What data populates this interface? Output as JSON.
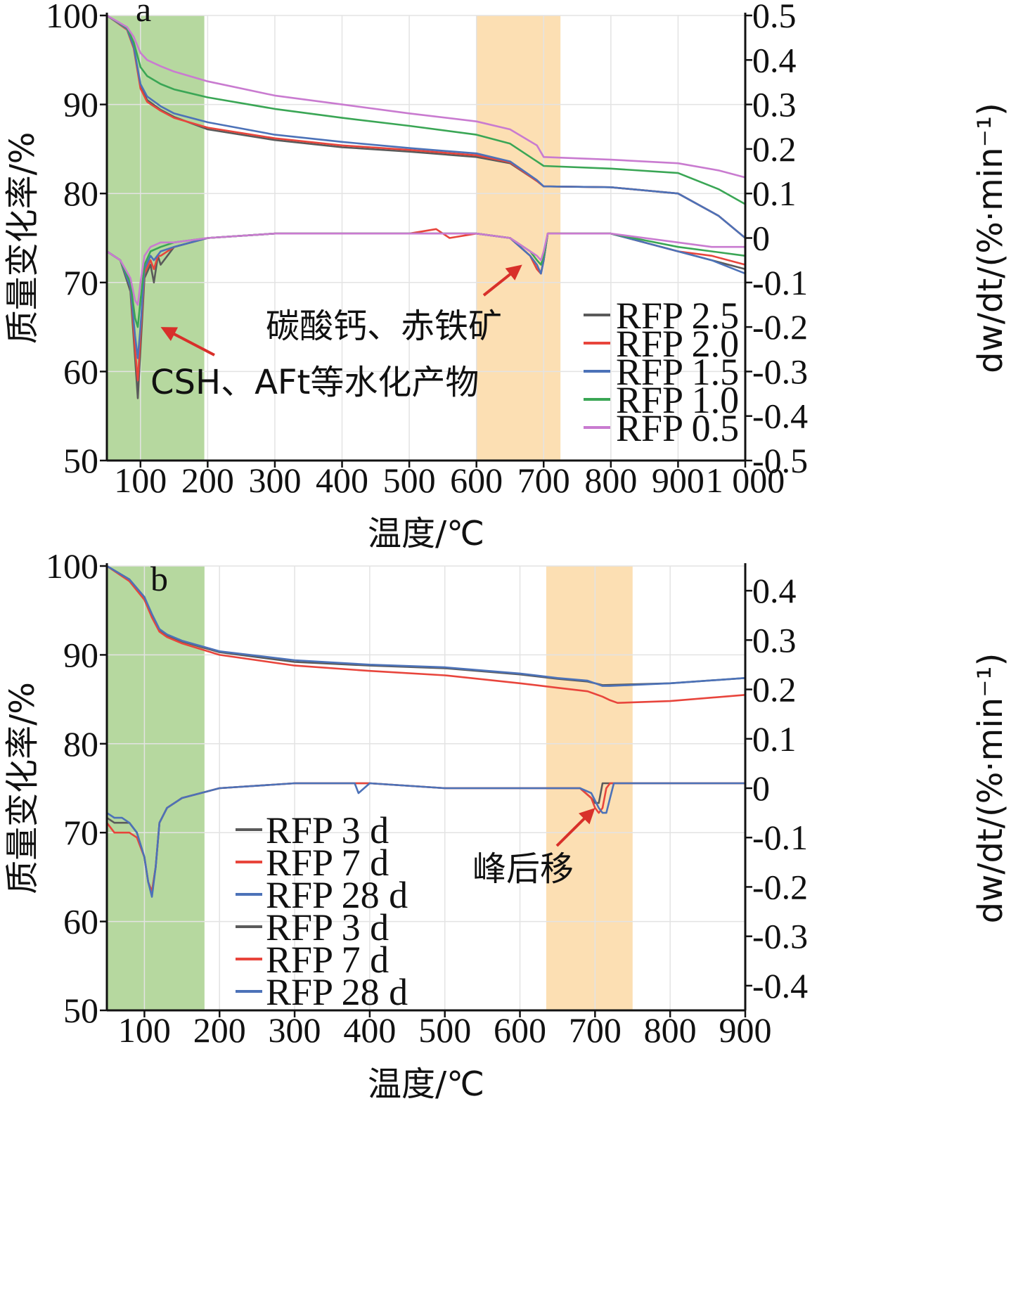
{
  "chart_data": [
    {
      "panel": "a",
      "type": "line",
      "xlabel": "温度/℃",
      "ylabel_left": "质量变化率/%",
      "ylabel_right": "dw/dt/(%·min⁻¹)",
      "xlim": [
        50,
        1000
      ],
      "ylim_left": [
        50,
        100
      ],
      "ylim_right": [
        -0.5,
        0.5
      ],
      "xticks": [
        100,
        200,
        300,
        400,
        500,
        600,
        700,
        800,
        900,
        1000
      ],
      "xtick_labels": [
        "100",
        "200",
        "300",
        "400",
        "500",
        "600",
        "700",
        "800",
        "900",
        "1 000"
      ],
      "yticks_left": [
        50,
        60,
        70,
        80,
        90,
        100
      ],
      "yticks_right": [
        -0.5,
        -0.4,
        -0.3,
        -0.2,
        -0.1,
        0,
        0.1,
        0.2,
        0.3,
        0.4,
        0.5
      ],
      "ytick_labels_right": [
        "-0.5",
        "-0.4",
        "-0.3",
        "-0.2",
        "-0.1",
        "0",
        "0.1",
        "0.2",
        "0.3",
        "0.4",
        "0.5"
      ],
      "bands": [
        {
          "from": 50,
          "to": 195,
          "color": "#a9d18e"
        },
        {
          "from": 600,
          "to": 725,
          "color": "#fcd9a6"
        }
      ],
      "annotations": [
        {
          "text": "CSH、AFt等水化产物",
          "arrow_to": [
            130,
            65
          ]
        },
        {
          "text": "碳酸钙、赤铁矿",
          "arrow_to": [
            668,
            72
          ]
        }
      ],
      "series": [
        {
          "name": "RFP 2.5",
          "color": "#5a5a5a",
          "tg": {
            "x": [
              50,
              80,
              90,
              100,
              110,
              130,
              150,
              200,
              300,
              400,
              500,
              600,
              650,
              690,
              700,
              800,
              900,
              960,
              1000
            ],
            "y": [
              100,
              98.5,
              96.5,
              92,
              90.5,
              89.4,
              88.6,
              87.2,
              86,
              85.2,
              84.7,
              84.1,
              83.4,
              81.4,
              80.8,
              80.7,
              80,
              77.5,
              75
            ]
          },
          "dtg": {
            "x": [
              50,
              70,
              85,
              92,
              96,
              100,
              106,
              115,
              120,
              126,
              130,
              150,
              200,
              300,
              400,
              500,
              600,
              650,
              680,
              690,
              696,
              700,
              706,
              720,
              800,
              900,
              950,
              1000
            ],
            "y": [
              -0.03,
              -0.05,
              -0.12,
              -0.27,
              -0.36,
              -0.25,
              -0.09,
              -0.06,
              -0.1,
              -0.04,
              -0.06,
              -0.02,
              0,
              0.01,
              0.01,
              0.01,
              0.01,
              0,
              -0.04,
              -0.07,
              -0.08,
              -0.05,
              0.01,
              0.01,
              0.01,
              -0.03,
              -0.05,
              -0.07
            ]
          }
        },
        {
          "name": "RFP 2.0",
          "color": "#e8453c",
          "tg": {
            "x": [
              50,
              80,
              90,
              100,
              110,
              130,
              150,
              200,
              300,
              400,
              500,
              600,
              650,
              690,
              700,
              800,
              900,
              960,
              1000
            ],
            "y": [
              100,
              98.4,
              96.3,
              91.8,
              90.3,
              89.3,
              88.5,
              87.4,
              86.2,
              85.4,
              84.9,
              84.3,
              83.5,
              81.4,
              80.8,
              80.7,
              80,
              77.5,
              75
            ]
          },
          "dtg": {
            "x": [
              50,
              70,
              85,
              92,
              96,
              100,
              106,
              115,
              120,
              126,
              130,
              150,
              200,
              300,
              400,
              500,
              540,
              560,
              600,
              650,
              680,
              690,
              696,
              700,
              706,
              720,
              800,
              900,
              950,
              1000
            ],
            "y": [
              -0.03,
              -0.05,
              -0.11,
              -0.25,
              -0.32,
              -0.22,
              -0.08,
              -0.05,
              -0.07,
              -0.04,
              -0.04,
              -0.02,
              0,
              0.01,
              0.01,
              0.01,
              0.02,
              0,
              0.01,
              0,
              -0.04,
              -0.07,
              -0.08,
              -0.05,
              0.01,
              0.01,
              0.01,
              -0.03,
              -0.04,
              -0.06
            ]
          }
        },
        {
          "name": "RFP 1.5",
          "color": "#4c72b8",
          "tg": {
            "x": [
              50,
              80,
              90,
              100,
              110,
              130,
              150,
              200,
              300,
              400,
              500,
              600,
              650,
              690,
              700,
              800,
              900,
              960,
              1000
            ],
            "y": [
              100,
              98.5,
              96.5,
              92.3,
              90.9,
              89.8,
              89,
              88,
              86.6,
              85.8,
              85.1,
              84.5,
              83.6,
              81.5,
              80.8,
              80.7,
              80,
              77.5,
              75
            ]
          },
          "dtg": {
            "x": [
              50,
              70,
              85,
              92,
              96,
              100,
              106,
              115,
              120,
              130,
              150,
              200,
              300,
              400,
              500,
              600,
              650,
              680,
              690,
              696,
              700,
              706,
              720,
              800,
              900,
              950,
              1000
            ],
            "y": [
              -0.03,
              -0.05,
              -0.11,
              -0.22,
              -0.27,
              -0.2,
              -0.07,
              -0.04,
              -0.05,
              -0.03,
              -0.02,
              0,
              0.01,
              0.01,
              0.01,
              0.01,
              0,
              -0.04,
              -0.06,
              -0.08,
              -0.05,
              0.01,
              0.01,
              0.01,
              -0.03,
              -0.05,
              -0.08
            ]
          }
        },
        {
          "name": "RFP 1.0",
          "color": "#3aa655",
          "tg": {
            "x": [
              50,
              80,
              90,
              100,
              110,
              130,
              150,
              200,
              300,
              400,
              500,
              600,
              650,
              690,
              700,
              800,
              900,
              960,
              1000
            ],
            "y": [
              100,
              98.6,
              97,
              94.2,
              93.2,
              92.3,
              91.7,
              90.8,
              89.5,
              88.5,
              87.6,
              86.6,
              85.6,
              83.6,
              83.1,
              82.8,
              82.3,
              80.5,
              78.8
            ]
          },
          "dtg": {
            "x": [
              50,
              70,
              85,
              92,
              96,
              100,
              106,
              115,
              130,
              150,
              200,
              300,
              400,
              500,
              600,
              650,
              680,
              690,
              696,
              700,
              706,
              720,
              800,
              900,
              950,
              1000
            ],
            "y": [
              -0.03,
              -0.05,
              -0.1,
              -0.18,
              -0.2,
              -0.14,
              -0.06,
              -0.03,
              -0.02,
              -0.01,
              0,
              0.01,
              0.01,
              0.01,
              0.01,
              0,
              -0.03,
              -0.05,
              -0.06,
              -0.04,
              0.01,
              0.01,
              0.01,
              -0.02,
              -0.03,
              -0.04
            ]
          }
        },
        {
          "name": "RFP 0.5",
          "color": "#c97bd0",
          "tg": {
            "x": [
              50,
              80,
              90,
              100,
              110,
              130,
              150,
              200,
              300,
              400,
              500,
              600,
              650,
              690,
              700,
              800,
              900,
              960,
              1000
            ],
            "y": [
              100,
              98.7,
              97.6,
              95.8,
              95,
              94.3,
              93.7,
              92.6,
              91,
              90,
              89,
              88.1,
              87.2,
              85.4,
              84.1,
              83.8,
              83.4,
              82.6,
              81.8
            ]
          },
          "dtg": {
            "x": [
              50,
              70,
              85,
              92,
              96,
              100,
              106,
              115,
              130,
              150,
              200,
              300,
              400,
              500,
              600,
              650,
              680,
              690,
              696,
              700,
              706,
              720,
              800,
              900,
              950,
              1000
            ],
            "y": [
              -0.03,
              -0.05,
              -0.09,
              -0.14,
              -0.15,
              -0.1,
              -0.04,
              -0.02,
              -0.01,
              -0.01,
              0,
              0.01,
              0.01,
              0.01,
              0.01,
              0,
              -0.03,
              -0.04,
              -0.05,
              -0.03,
              0.01,
              0.01,
              0.01,
              -0.01,
              -0.02,
              -0.02
            ]
          }
        }
      ]
    },
    {
      "panel": "b",
      "type": "line",
      "xlabel": "温度/℃",
      "ylabel_left": "质量变化率/%",
      "ylabel_right": "dw/dt/(%·min⁻¹)",
      "xlim": [
        50,
        900
      ],
      "ylim_left": [
        50,
        100
      ],
      "ylim_right": [
        -0.45,
        0.45
      ],
      "xticks": [
        100,
        200,
        300,
        400,
        500,
        600,
        700,
        800,
        900
      ],
      "xtick_labels": [
        "100",
        "200",
        "300",
        "400",
        "500",
        "600",
        "700",
        "800",
        "900"
      ],
      "yticks_left": [
        50,
        60,
        70,
        80,
        90,
        100
      ],
      "yticks_right": [
        -0.4,
        -0.3,
        -0.2,
        -0.1,
        0,
        0.1,
        0.2,
        0.3,
        0.4
      ],
      "ytick_labels_right": [
        "-0.4",
        "-0.3",
        "-0.2",
        "-0.1",
        "0",
        "0.1",
        "0.2",
        "0.3",
        "0.4"
      ],
      "bands": [
        {
          "from": 50,
          "to": 180,
          "color": "#a9d18e"
        },
        {
          "from": 635,
          "to": 750,
          "color": "#fcd9a6"
        }
      ],
      "annotations": [
        {
          "text": "峰后移",
          "arrow_to": [
            700,
            -0.04
          ]
        }
      ],
      "series": [
        {
          "name": "RFP 3 d",
          "color": "#5a5a5a",
          "tg": {
            "x": [
              50,
              80,
              100,
              110,
              120,
              130,
              150,
              200,
              300,
              400,
              500,
              600,
              650,
              690,
              700,
              710,
              800,
              900
            ],
            "y": [
              100,
              98.5,
              96.5,
              94.5,
              92.8,
              92.2,
              91.5,
              90.3,
              89.2,
              88.8,
              88.5,
              87.8,
              87.3,
              87,
              86.8,
              86.6,
              86.8,
              87.4
            ]
          },
          "dtg": {
            "x": [
              50,
              60,
              70,
              80,
              90,
              100,
              105,
              110,
              115,
              120,
              130,
              150,
              200,
              300,
              400,
              500,
              600,
              650,
              680,
              695,
              700,
              705,
              710,
              720,
              800,
              900
            ],
            "y": [
              -0.06,
              -0.07,
              -0.07,
              -0.07,
              -0.09,
              -0.14,
              -0.19,
              -0.21,
              -0.16,
              -0.07,
              -0.04,
              -0.02,
              0,
              0.01,
              0.01,
              0,
              0,
              0,
              0,
              -0.02,
              -0.03,
              -0.03,
              0.01,
              0.01,
              0.01,
              0.01
            ]
          }
        },
        {
          "name": "RFP 7 d",
          "color": "#e8453c",
          "tg": {
            "x": [
              50,
              80,
              100,
              110,
              120,
              130,
              150,
              200,
              300,
              400,
              500,
              600,
              650,
              690,
              700,
              710,
              720,
              730,
              800,
              900
            ],
            "y": [
              100,
              98.3,
              96.2,
              94.2,
              92.6,
              92,
              91.3,
              90,
              88.8,
              88.2,
              87.7,
              86.8,
              86.3,
              85.9,
              85.6,
              85.3,
              84.9,
              84.6,
              84.8,
              85.5
            ]
          },
          "dtg": {
            "x": [
              50,
              60,
              70,
              80,
              90,
              100,
              105,
              110,
              115,
              120,
              130,
              150,
              200,
              300,
              400,
              500,
              600,
              650,
              680,
              695,
              700,
              705,
              710,
              715,
              720,
              800,
              900
            ],
            "y": [
              -0.07,
              -0.09,
              -0.09,
              -0.09,
              -0.1,
              -0.14,
              -0.19,
              -0.21,
              -0.16,
              -0.07,
              -0.04,
              -0.02,
              0,
              0.01,
              0.01,
              0,
              0,
              0,
              0,
              -0.02,
              -0.04,
              -0.05,
              -0.04,
              0,
              0.01,
              0.01,
              0.01
            ]
          }
        },
        {
          "name": "RFP 28 d",
          "color": "#4c72b8",
          "tg": {
            "x": [
              50,
              80,
              100,
              110,
              120,
              130,
              150,
              200,
              300,
              400,
              500,
              600,
              650,
              690,
              700,
              710,
              720,
              800,
              900
            ],
            "y": [
              100,
              98.5,
              96.5,
              94.6,
              92.9,
              92.3,
              91.6,
              90.4,
              89.4,
              88.9,
              88.6,
              87.9,
              87.4,
              87.1,
              86.8,
              86.5,
              86.5,
              86.8,
              87.4
            ]
          },
          "dtg": {
            "x": [
              50,
              60,
              70,
              80,
              90,
              100,
              105,
              110,
              115,
              120,
              130,
              150,
              200,
              300,
              380,
              385,
              400,
              500,
              600,
              650,
              680,
              695,
              705,
              710,
              715,
              720,
              725,
              800,
              900
            ],
            "y": [
              -0.05,
              -0.06,
              -0.06,
              -0.07,
              -0.09,
              -0.14,
              -0.19,
              -0.22,
              -0.16,
              -0.07,
              -0.04,
              -0.02,
              0,
              0.01,
              0.01,
              -0.01,
              0.01,
              0,
              0,
              0,
              0,
              -0.01,
              -0.04,
              -0.05,
              -0.05,
              -0.02,
              0.01,
              0.01,
              0.01
            ]
          }
        }
      ]
    }
  ]
}
